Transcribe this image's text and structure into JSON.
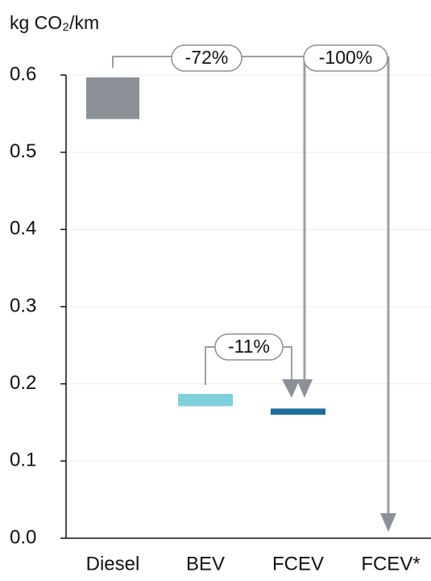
{
  "chart_data": {
    "type": "floating_bar",
    "y_label": "kg CO₂/km",
    "categories": [
      "Diesel",
      "BEV",
      "FCEV",
      "FCEV*"
    ],
    "low": [
      0.543,
      0.171,
      0.16,
      null
    ],
    "high": [
      0.597,
      0.187,
      0.168,
      null
    ],
    "colors": [
      "#8c9097",
      "#7fcfdd",
      "#1d6e9b",
      null
    ],
    "ylim": [
      0,
      0.6
    ],
    "yticks": [
      {
        "value": 0,
        "label": "0.0"
      },
      0.1,
      0.2,
      0.3,
      0.4,
      0.5,
      0.6
    ],
    "grid": true,
    "annotations": [
      "-72%",
      "-100%",
      "-11%"
    ]
  }
}
